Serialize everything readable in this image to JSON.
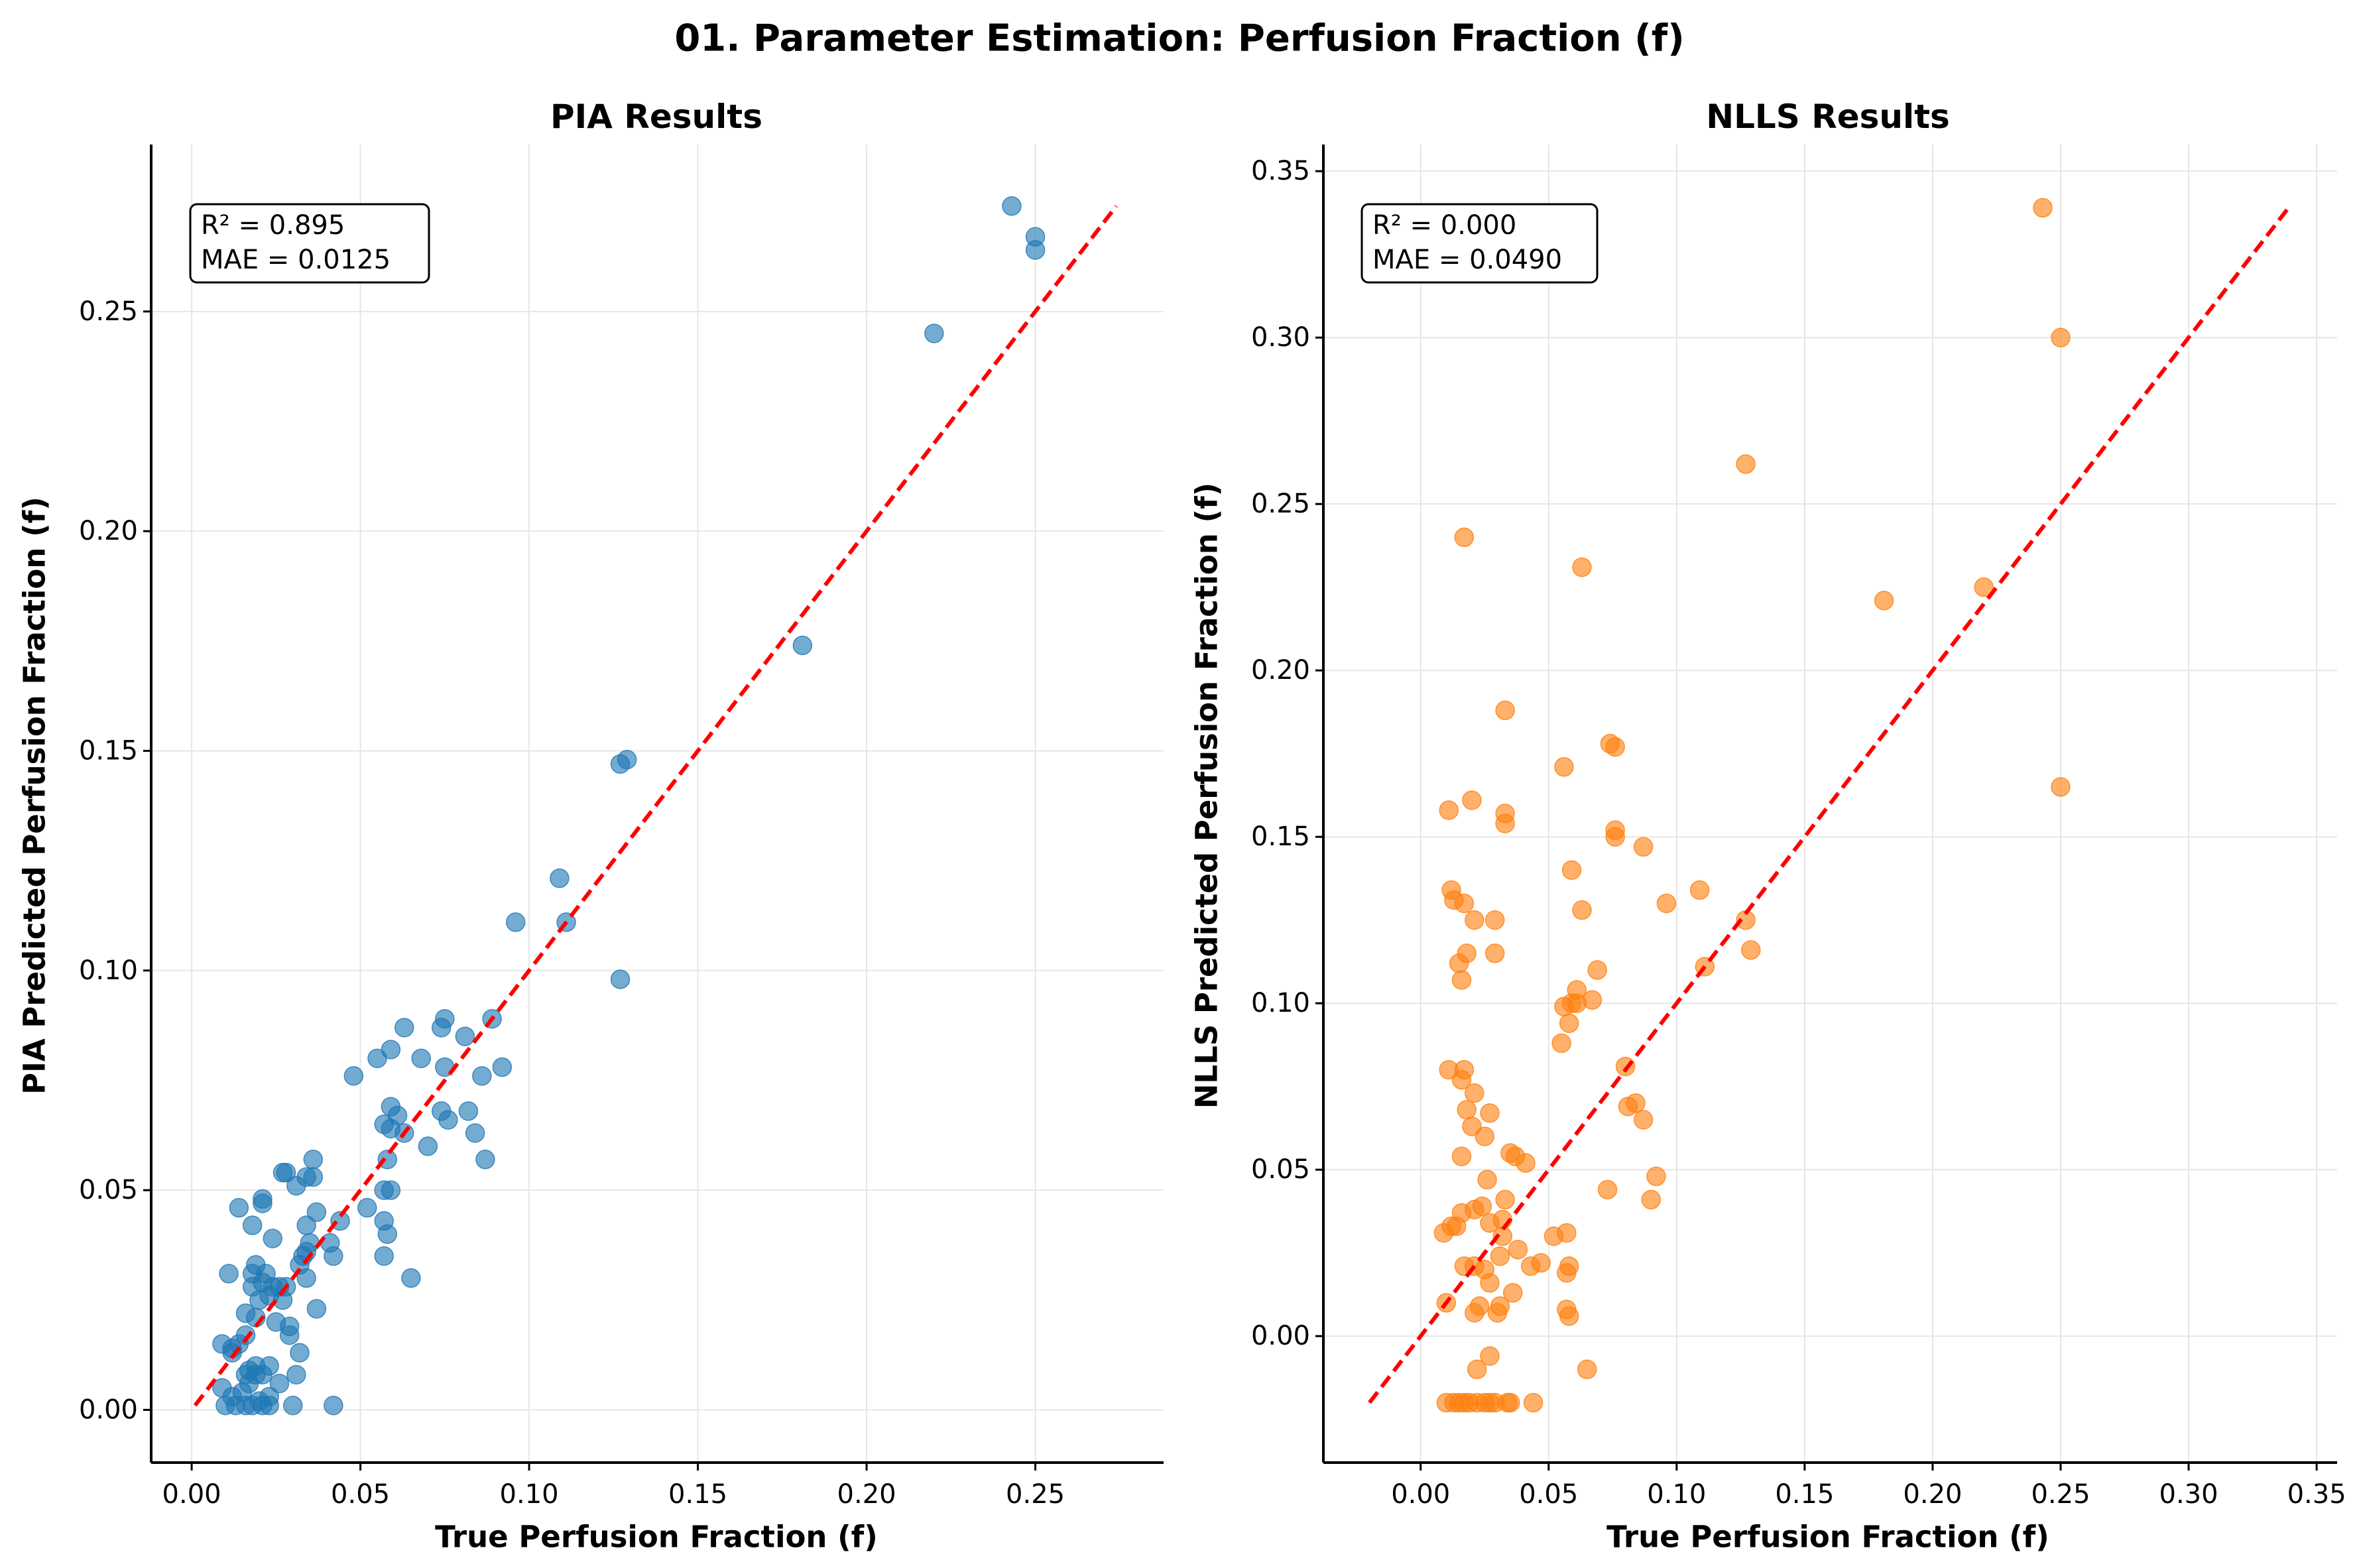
{
  "figure_title": "01. Parameter Estimation: Perfusion Fraction (f)",
  "chart_data": [
    {
      "type": "scatter",
      "title": "PIA Results",
      "xlabel": "True Perfusion Fraction (f)",
      "ylabel": "PIA Predicted Perfusion Fraction (f)",
      "xlim": [
        -0.012,
        0.288
      ],
      "ylim": [
        -0.012,
        0.288
      ],
      "xticks": [
        "0.00",
        "0.05",
        "0.10",
        "0.15",
        "0.20",
        "0.25"
      ],
      "yticks": [
        "0.00",
        "0.05",
        "0.10",
        "0.15",
        "0.20",
        "0.25"
      ],
      "grid": true,
      "color": "#1f77b4",
      "identity_line": {
        "from": 0.001,
        "to": 0.274,
        "color": "#ff0000",
        "style": "dashed"
      },
      "stats": {
        "r2": "R² = 0.895",
        "mae": "MAE = 0.0125"
      },
      "stats_position": "top-left",
      "points": [
        [
          0.243,
          0.274
        ],
        [
          0.25,
          0.267
        ],
        [
          0.25,
          0.264
        ],
        [
          0.22,
          0.245
        ],
        [
          0.181,
          0.174
        ],
        [
          0.129,
          0.148
        ],
        [
          0.127,
          0.147
        ],
        [
          0.109,
          0.121
        ],
        [
          0.096,
          0.111
        ],
        [
          0.111,
          0.111
        ],
        [
          0.127,
          0.098
        ],
        [
          0.089,
          0.089
        ],
        [
          0.075,
          0.089
        ],
        [
          0.074,
          0.087
        ],
        [
          0.063,
          0.087
        ],
        [
          0.081,
          0.085
        ],
        [
          0.059,
          0.082
        ],
        [
          0.055,
          0.08
        ],
        [
          0.068,
          0.08
        ],
        [
          0.048,
          0.076
        ],
        [
          0.075,
          0.078
        ],
        [
          0.086,
          0.076
        ],
        [
          0.092,
          0.078
        ],
        [
          0.059,
          0.069
        ],
        [
          0.074,
          0.068
        ],
        [
          0.061,
          0.067
        ],
        [
          0.076,
          0.066
        ],
        [
          0.082,
          0.068
        ],
        [
          0.057,
          0.065
        ],
        [
          0.059,
          0.064
        ],
        [
          0.063,
          0.063
        ],
        [
          0.084,
          0.063
        ],
        [
          0.07,
          0.06
        ],
        [
          0.087,
          0.057
        ],
        [
          0.058,
          0.057
        ],
        [
          0.036,
          0.057
        ],
        [
          0.027,
          0.054
        ],
        [
          0.028,
          0.054
        ],
        [
          0.034,
          0.053
        ],
        [
          0.036,
          0.053
        ],
        [
          0.031,
          0.051
        ],
        [
          0.057,
          0.05
        ],
        [
          0.059,
          0.05
        ],
        [
          0.021,
          0.048
        ],
        [
          0.021,
          0.047
        ],
        [
          0.014,
          0.046
        ],
        [
          0.037,
          0.045
        ],
        [
          0.052,
          0.046
        ],
        [
          0.044,
          0.043
        ],
        [
          0.018,
          0.042
        ],
        [
          0.034,
          0.042
        ],
        [
          0.057,
          0.043
        ],
        [
          0.058,
          0.04
        ],
        [
          0.024,
          0.039
        ],
        [
          0.035,
          0.038
        ],
        [
          0.041,
          0.038
        ],
        [
          0.034,
          0.036
        ],
        [
          0.042,
          0.035
        ],
        [
          0.057,
          0.035
        ],
        [
          0.033,
          0.035
        ],
        [
          0.032,
          0.033
        ],
        [
          0.019,
          0.033
        ],
        [
          0.011,
          0.031
        ],
        [
          0.018,
          0.031
        ],
        [
          0.022,
          0.031
        ],
        [
          0.034,
          0.03
        ],
        [
          0.065,
          0.03
        ],
        [
          0.021,
          0.029
        ],
        [
          0.024,
          0.028
        ],
        [
          0.018,
          0.028
        ],
        [
          0.026,
          0.028
        ],
        [
          0.028,
          0.028
        ],
        [
          0.023,
          0.026
        ],
        [
          0.02,
          0.025
        ],
        [
          0.027,
          0.025
        ],
        [
          0.037,
          0.023
        ],
        [
          0.016,
          0.022
        ],
        [
          0.019,
          0.021
        ],
        [
          0.025,
          0.02
        ],
        [
          0.029,
          0.019
        ],
        [
          0.029,
          0.017
        ],
        [
          0.016,
          0.017
        ],
        [
          0.014,
          0.015
        ],
        [
          0.009,
          0.015
        ],
        [
          0.012,
          0.014
        ],
        [
          0.012,
          0.013
        ],
        [
          0.032,
          0.013
        ],
        [
          0.019,
          0.01
        ],
        [
          0.023,
          0.01
        ],
        [
          0.017,
          0.009
        ],
        [
          0.016,
          0.008
        ],
        [
          0.019,
          0.008
        ],
        [
          0.021,
          0.008
        ],
        [
          0.031,
          0.008
        ],
        [
          0.017,
          0.006
        ],
        [
          0.026,
          0.006
        ],
        [
          0.009,
          0.005
        ],
        [
          0.015,
          0.004
        ],
        [
          0.012,
          0.003
        ],
        [
          0.023,
          0.003
        ],
        [
          0.02,
          0.002
        ],
        [
          0.01,
          0.001
        ],
        [
          0.013,
          0.001
        ],
        [
          0.016,
          0.001
        ],
        [
          0.018,
          0.001
        ],
        [
          0.021,
          0.001
        ],
        [
          0.023,
          0.001
        ],
        [
          0.03,
          0.001
        ],
        [
          0.042,
          0.001
        ]
      ]
    },
    {
      "type": "scatter",
      "title": "NLLS Results",
      "xlabel": "True Perfusion Fraction (f)",
      "ylabel": "NLLS Predicted Perfusion Fraction (f)",
      "xlim": [
        -0.038,
        0.358
      ],
      "ylim": [
        -0.038,
        0.358
      ],
      "xticks": [
        "0.00",
        "0.05",
        "0.10",
        "0.15",
        "0.20",
        "0.25",
        "0.30",
        "0.35"
      ],
      "yticks": [
        "0.00",
        "0.05",
        "0.10",
        "0.15",
        "0.20",
        "0.25",
        "0.30",
        "0.35"
      ],
      "grid": true,
      "color": "#ff7f0e",
      "identity_line": {
        "from": -0.02,
        "to": 0.34,
        "color": "#ff0000",
        "style": "dashed"
      },
      "stats": {
        "r2": "R² = 0.000",
        "mae": "MAE = 0.0490"
      },
      "stats_position": "top-left",
      "points": [
        [
          0.243,
          0.339
        ],
        [
          0.25,
          0.3
        ],
        [
          0.127,
          0.262
        ],
        [
          0.017,
          0.24
        ],
        [
          0.063,
          0.231
        ],
        [
          0.22,
          0.225
        ],
        [
          0.181,
          0.221
        ],
        [
          0.033,
          0.188
        ],
        [
          0.074,
          0.178
        ],
        [
          0.076,
          0.177
        ],
        [
          0.056,
          0.171
        ],
        [
          0.25,
          0.165
        ],
        [
          0.02,
          0.161
        ],
        [
          0.011,
          0.158
        ],
        [
          0.033,
          0.157
        ],
        [
          0.033,
          0.154
        ],
        [
          0.076,
          0.152
        ],
        [
          0.076,
          0.15
        ],
        [
          0.087,
          0.147
        ],
        [
          0.059,
          0.14
        ],
        [
          0.109,
          0.134
        ],
        [
          0.012,
          0.134
        ],
        [
          0.013,
          0.131
        ],
        [
          0.017,
          0.13
        ],
        [
          0.096,
          0.13
        ],
        [
          0.063,
          0.128
        ],
        [
          0.021,
          0.125
        ],
        [
          0.029,
          0.125
        ],
        [
          0.127,
          0.125
        ],
        [
          0.129,
          0.116
        ],
        [
          0.018,
          0.115
        ],
        [
          0.029,
          0.115
        ],
        [
          0.015,
          0.112
        ],
        [
          0.111,
          0.111
        ],
        [
          0.069,
          0.11
        ],
        [
          0.016,
          0.107
        ],
        [
          0.061,
          0.104
        ],
        [
          0.067,
          0.101
        ],
        [
          0.061,
          0.1
        ],
        [
          0.059,
          0.1
        ],
        [
          0.056,
          0.099
        ],
        [
          0.058,
          0.094
        ],
        [
          0.055,
          0.088
        ],
        [
          0.08,
          0.081
        ],
        [
          0.011,
          0.08
        ],
        [
          0.017,
          0.08
        ],
        [
          0.016,
          0.077
        ],
        [
          0.021,
          0.073
        ],
        [
          0.081,
          0.069
        ],
        [
          0.084,
          0.07
        ],
        [
          0.018,
          0.068
        ],
        [
          0.027,
          0.067
        ],
        [
          0.087,
          0.065
        ],
        [
          0.02,
          0.063
        ],
        [
          0.025,
          0.06
        ],
        [
          0.016,
          0.054
        ],
        [
          0.035,
          0.055
        ],
        [
          0.037,
          0.054
        ],
        [
          0.041,
          0.052
        ],
        [
          0.026,
          0.047
        ],
        [
          0.092,
          0.048
        ],
        [
          0.073,
          0.044
        ],
        [
          0.09,
          0.041
        ],
        [
          0.033,
          0.041
        ],
        [
          0.016,
          0.037
        ],
        [
          0.021,
          0.038
        ],
        [
          0.024,
          0.039
        ],
        [
          0.032,
          0.035
        ],
        [
          0.012,
          0.033
        ],
        [
          0.014,
          0.033
        ],
        [
          0.009,
          0.031
        ],
        [
          0.027,
          0.034
        ],
        [
          0.057,
          0.031
        ],
        [
          0.032,
          0.03
        ],
        [
          0.052,
          0.03
        ],
        [
          0.038,
          0.026
        ],
        [
          0.031,
          0.024
        ],
        [
          0.017,
          0.021
        ],
        [
          0.021,
          0.021
        ],
        [
          0.043,
          0.021
        ],
        [
          0.058,
          0.021
        ],
        [
          0.047,
          0.022
        ],
        [
          0.025,
          0.02
        ],
        [
          0.057,
          0.019
        ],
        [
          0.027,
          0.016
        ],
        [
          0.036,
          0.013
        ],
        [
          0.01,
          0.01
        ],
        [
          0.023,
          0.009
        ],
        [
          0.031,
          0.009
        ],
        [
          0.03,
          0.007
        ],
        [
          0.021,
          0.007
        ],
        [
          0.057,
          0.008
        ],
        [
          0.058,
          0.006
        ],
        [
          0.027,
          -0.006
        ],
        [
          0.022,
          -0.01
        ],
        [
          0.065,
          -0.01
        ],
        [
          0.01,
          -0.02
        ],
        [
          0.013,
          -0.02
        ],
        [
          0.015,
          -0.02
        ],
        [
          0.017,
          -0.02
        ],
        [
          0.019,
          -0.02
        ],
        [
          0.022,
          -0.02
        ],
        [
          0.025,
          -0.02
        ],
        [
          0.027,
          -0.02
        ],
        [
          0.029,
          -0.02
        ],
        [
          0.034,
          -0.02
        ],
        [
          0.035,
          -0.02
        ],
        [
          0.044,
          -0.02
        ]
      ]
    }
  ]
}
